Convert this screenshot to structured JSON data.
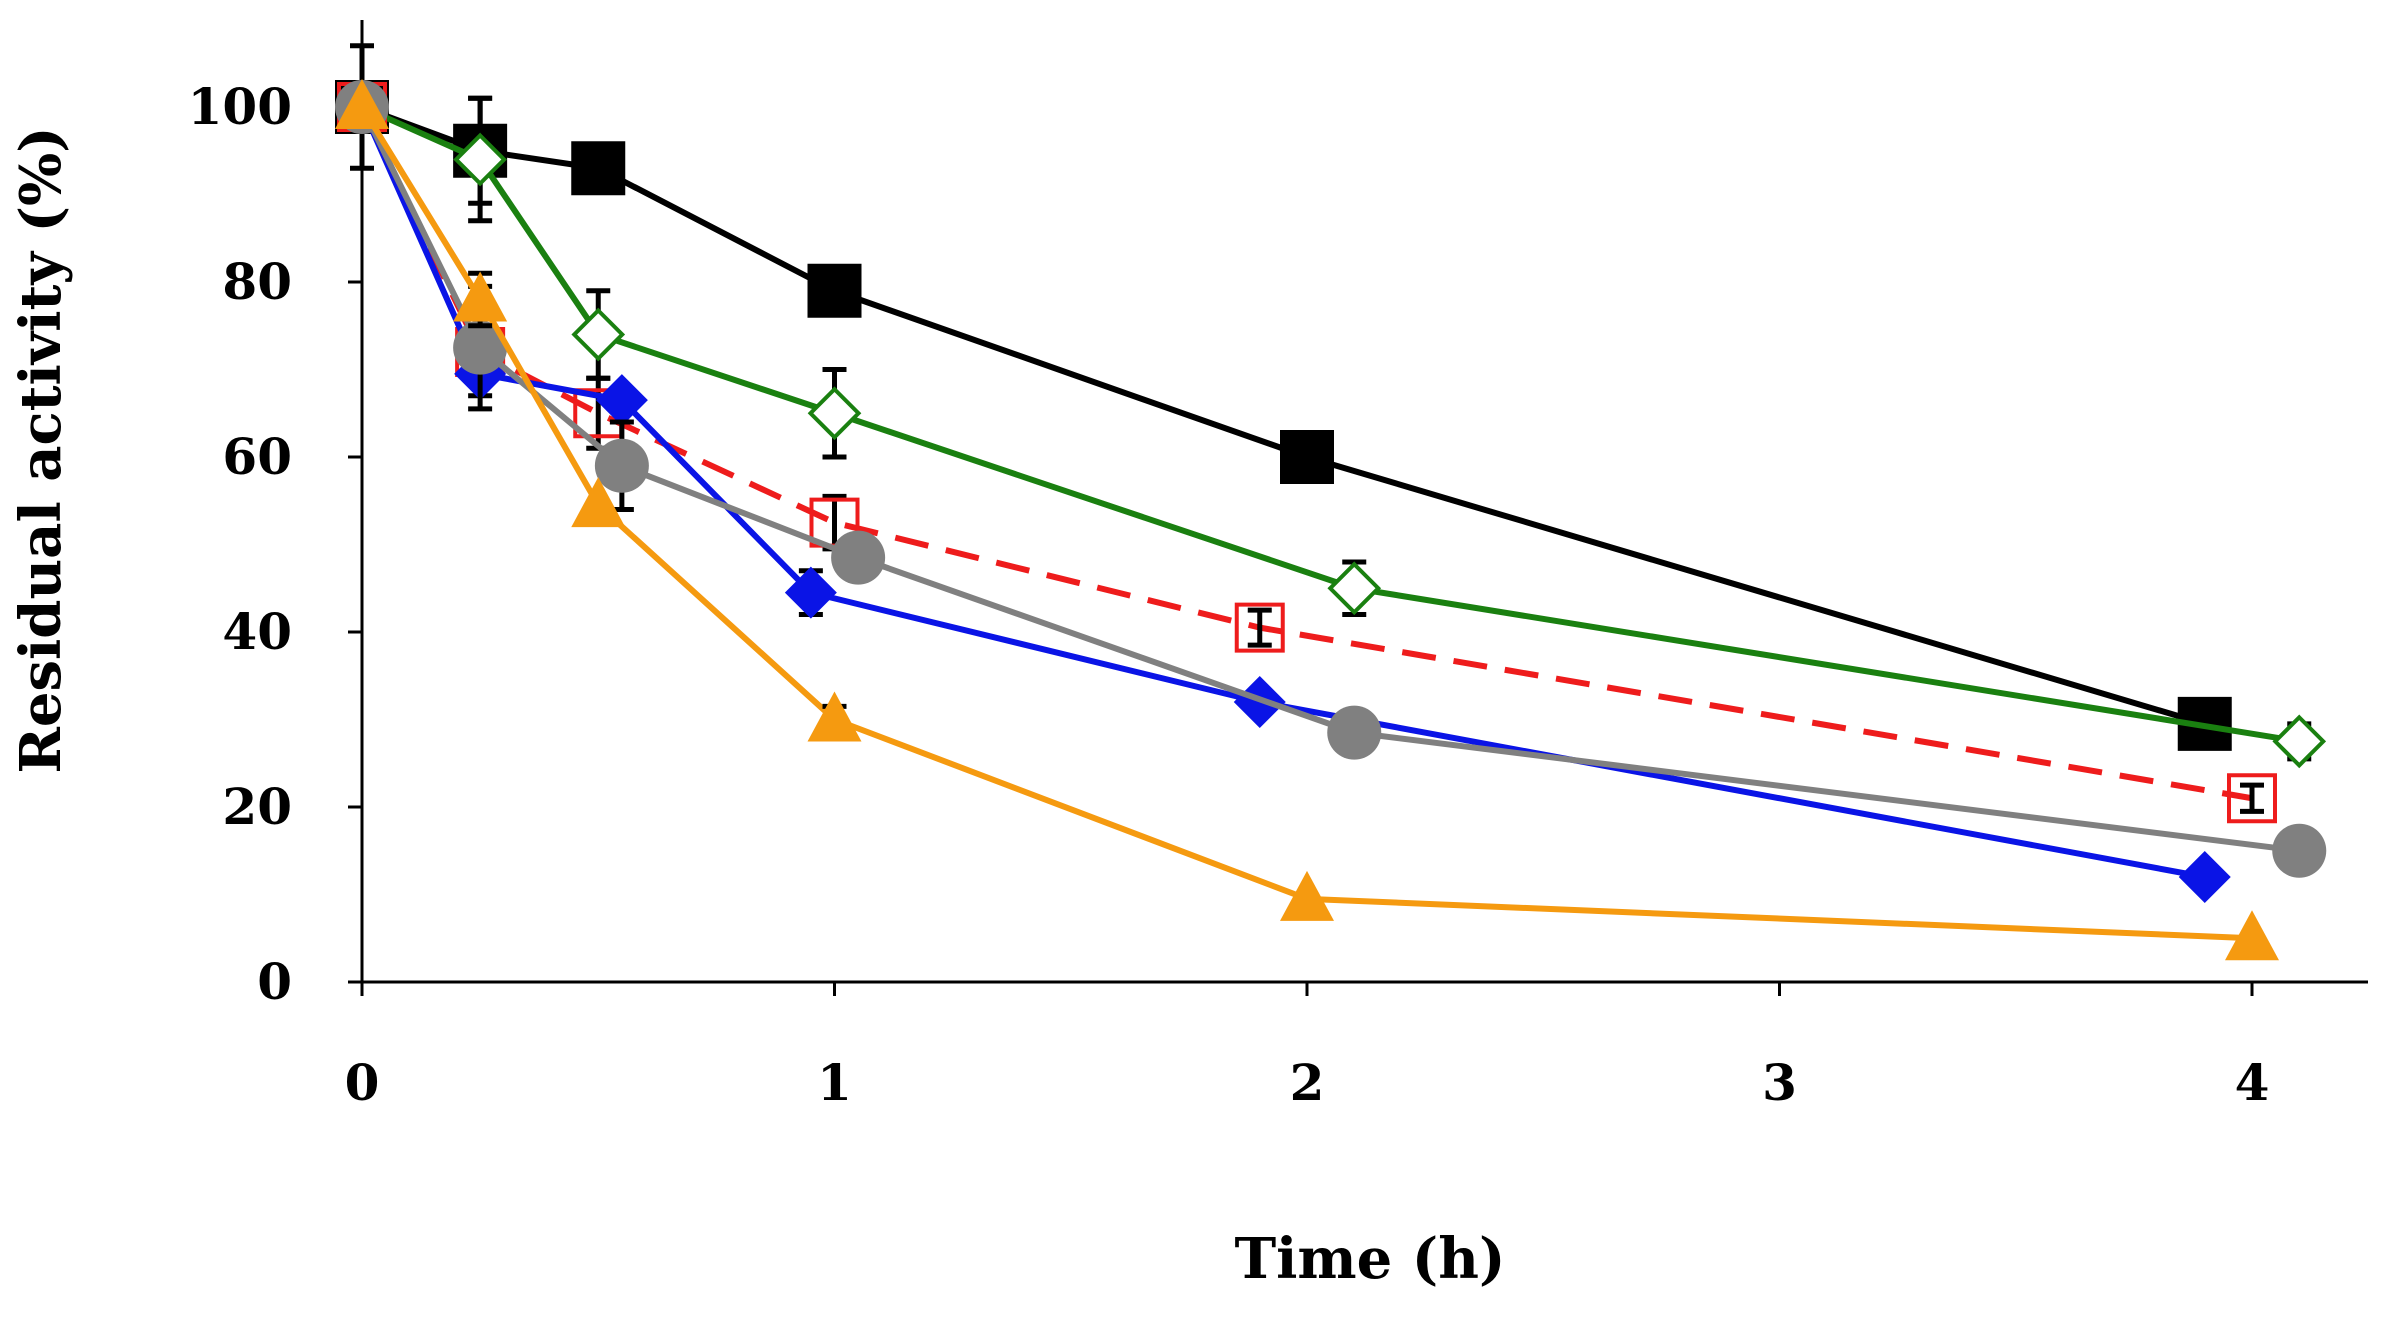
{
  "chart_data": {
    "type": "line",
    "title": "",
    "xlabel": "Time (h)",
    "ylabel": "Residual activity (%)",
    "xlim": [
      0,
      4.25
    ],
    "ylim": [
      0,
      110
    ],
    "xticks": [
      0,
      1,
      2,
      3,
      4
    ],
    "yticks": [
      0,
      20,
      40,
      60,
      80,
      100
    ],
    "xtick_labels": [
      "0",
      "1",
      "2",
      "3",
      "4"
    ],
    "ytick_labels": [
      "0",
      "20",
      "40",
      "60",
      "80",
      "100"
    ],
    "grid": false,
    "legend": "none",
    "series": [
      {
        "color": "#000000",
        "marker": "square-filled",
        "dash": "solid",
        "points": [
          {
            "x": 0.0,
            "y": 100,
            "err": 7
          },
          {
            "x": 0.25,
            "y": 95,
            "err": 6
          },
          {
            "x": 0.5,
            "y": 93,
            "err": 0
          },
          {
            "x": 1.0,
            "y": 79,
            "err": 0
          },
          {
            "x": 2.0,
            "y": 60,
            "err": 0
          },
          {
            "x": 3.9,
            "y": 29.5,
            "err": 0
          }
        ]
      },
      {
        "color": "#1a8010",
        "marker": "diamond-open",
        "dash": "solid",
        "points": [
          {
            "x": 0.0,
            "y": 100,
            "err": 0
          },
          {
            "x": 0.25,
            "y": 94,
            "err": 7
          },
          {
            "x": 0.5,
            "y": 74,
            "err": 5
          },
          {
            "x": 1.0,
            "y": 65,
            "err": 5
          },
          {
            "x": 2.1,
            "y": 45,
            "err": 3
          },
          {
            "x": 4.1,
            "y": 27.5,
            "err": 2
          }
        ]
      },
      {
        "color": "#ee1c1c",
        "marker": "square-open",
        "dash": "dashed",
        "points": [
          {
            "x": 0.0,
            "y": 100,
            "err": 0
          },
          {
            "x": 0.25,
            "y": 72,
            "err": 5
          },
          {
            "x": 0.5,
            "y": 65,
            "err": 4
          },
          {
            "x": 1.0,
            "y": 52.5,
            "err": 3
          },
          {
            "x": 1.9,
            "y": 40.5,
            "err": 2
          },
          {
            "x": 4.0,
            "y": 21,
            "err": 1.5
          }
        ]
      },
      {
        "color": "#0a14e6",
        "marker": "diamond-filled",
        "dash": "solid",
        "points": [
          {
            "x": 0.0,
            "y": 100,
            "err": 0
          },
          {
            "x": 0.25,
            "y": 69.5,
            "err": 0
          },
          {
            "x": 0.55,
            "y": 66.5,
            "err": 0
          },
          {
            "x": 0.95,
            "y": 44.5,
            "err": 2.5
          },
          {
            "x": 1.9,
            "y": 32,
            "err": 0
          },
          {
            "x": 3.9,
            "y": 12,
            "err": 0
          }
        ]
      },
      {
        "color": "#808080",
        "marker": "circle-filled",
        "dash": "solid",
        "points": [
          {
            "x": 0.0,
            "y": 100,
            "err": 0
          },
          {
            "x": 0.25,
            "y": 72.5,
            "err": 7
          },
          {
            "x": 0.55,
            "y": 59,
            "err": 5
          },
          {
            "x": 1.05,
            "y": 48.5,
            "err": 0
          },
          {
            "x": 2.1,
            "y": 28.5,
            "err": 0
          },
          {
            "x": 4.1,
            "y": 15,
            "err": 0
          }
        ]
      },
      {
        "color": "#f59a10",
        "marker": "triangle-filled",
        "dash": "solid",
        "points": [
          {
            "x": 0.0,
            "y": 100,
            "err": 0
          },
          {
            "x": 0.25,
            "y": 78,
            "err": 3
          },
          {
            "x": 0.5,
            "y": 54.5,
            "err": 0
          },
          {
            "x": 1.0,
            "y": 30,
            "err": 1.5
          },
          {
            "x": 2.0,
            "y": 9.5,
            "err": 0
          },
          {
            "x": 4.0,
            "y": 5,
            "err": 0
          }
        ]
      }
    ]
  }
}
